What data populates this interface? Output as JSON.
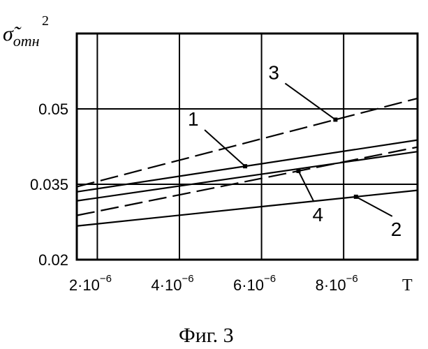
{
  "chart_data": {
    "type": "line",
    "xlabel": "T",
    "ylabel": {
      "symbol": "σ̃",
      "subscript": "отн",
      "exponent": "2"
    },
    "xlim": [
      1.5e-06,
      9.8e-06
    ],
    "ylim": [
      0.02,
      0.065
    ],
    "x_ticks": [
      {
        "value": 2e-06,
        "base": "2·10",
        "exp": "−6"
      },
      {
        "value": 4e-06,
        "base": "4·10",
        "exp": "−6"
      },
      {
        "value": 6e-06,
        "base": "6·10",
        "exp": "−6"
      },
      {
        "value": 8e-06,
        "base": "8·10",
        "exp": "−6"
      }
    ],
    "y_ticks": [
      {
        "value": 0.02,
        "label": "0.02"
      },
      {
        "value": 0.035,
        "label": "0.035"
      },
      {
        "value": 0.05,
        "label": "0.05"
      }
    ],
    "grid": true,
    "series": [
      {
        "name": "1",
        "style": "solid",
        "x": [
          1.5e-06,
          9.8e-06
        ],
        "y": [
          0.0335,
          0.0438
        ]
      },
      {
        "name": "2",
        "style": "solid",
        "x": [
          1.5e-06,
          9.8e-06
        ],
        "y": [
          0.0267,
          0.0338
        ]
      },
      {
        "name": "3",
        "style": "dashed",
        "x": [
          1.5e-06,
          9.8e-06
        ],
        "y": [
          0.0345,
          0.0521
        ]
      },
      {
        "name": "4",
        "style": "dashed",
        "x": [
          1.5e-06,
          9.8e-06
        ],
        "y": [
          0.0288,
          0.0424
        ]
      },
      {
        "name": "",
        "style": "solid",
        "x": [
          1.5e-06,
          9.8e-06
        ],
        "y": [
          0.0317,
          0.0415
        ]
      }
    ],
    "annotations": [
      {
        "label": "1",
        "series": 0,
        "x": 5.6e-06
      },
      {
        "label": "3",
        "series": 2,
        "x": 7.8e-06
      },
      {
        "label": "4",
        "series": 3,
        "x": 6.9e-06
      },
      {
        "label": "2",
        "series": 1,
        "x": 8.3e-06
      }
    ]
  },
  "caption": "Фиг. 3"
}
